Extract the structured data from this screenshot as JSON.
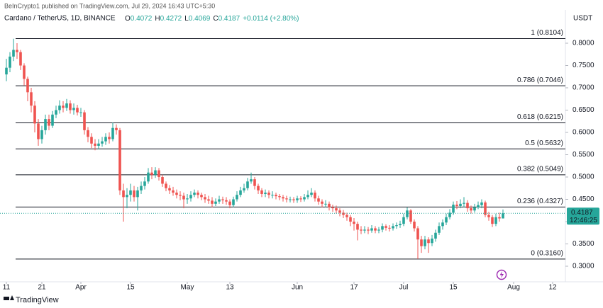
{
  "chart_data": {
    "type": "candlestick",
    "published": "BeInCrypto1 published on TradingView.com, Jul 29, 2024 16:43 UTC+5:30",
    "symbol": "Cardano / TetherUS, 1D, BINANCE",
    "ohlc": [
      {
        "key": "O",
        "value": "0.4072"
      },
      {
        "key": "H",
        "value": "0.4272"
      },
      {
        "key": "L",
        "value": "0.4069"
      },
      {
        "key": "C",
        "value": "0.4187"
      }
    ],
    "change": "+0.0114 (+2.80%)",
    "currency": "USDT",
    "brand": "TradingView",
    "up_color": "#26a69a",
    "down_color": "#ef5350",
    "xlim": [
      -1.8,
      157.6
    ],
    "ylim": [
      0.2651,
      0.8778
    ],
    "xticks": [
      {
        "value": 0,
        "label": "11"
      },
      {
        "value": 10,
        "label": "21"
      },
      {
        "value": 21,
        "label": "Apr"
      },
      {
        "value": 35,
        "label": "15"
      },
      {
        "value": 51,
        "label": "May"
      },
      {
        "value": 63,
        "label": "13"
      },
      {
        "value": 82,
        "label": "Jun"
      },
      {
        "value": 98,
        "label": "17"
      },
      {
        "value": 112,
        "label": "Jul"
      },
      {
        "value": 126,
        "label": "15"
      },
      {
        "value": 143,
        "label": "Aug"
      },
      {
        "value": 154,
        "label": "12"
      }
    ],
    "yticks": [
      {
        "value": 0.8,
        "label": "0.8000"
      },
      {
        "value": 0.75,
        "label": "0.7500"
      },
      {
        "value": 0.7,
        "label": "0.7000"
      },
      {
        "value": 0.65,
        "label": "0.6500"
      },
      {
        "value": 0.6,
        "label": "0.6000"
      },
      {
        "value": 0.55,
        "label": "0.5500"
      },
      {
        "value": 0.5,
        "label": "0.5000"
      },
      {
        "value": 0.45,
        "label": "0.4500"
      },
      {
        "value": 0.4,
        "label": "0.4000"
      },
      {
        "value": 0.35,
        "label": "0.3500"
      },
      {
        "value": 0.3,
        "label": "0.3000"
      }
    ],
    "fib_levels": [
      {
        "value": 0.8104,
        "label": "1 (0.8104)"
      },
      {
        "value": 0.7046,
        "label": "0.786 (0.7046)"
      },
      {
        "value": 0.6215,
        "label": "0.618 (0.6215)"
      },
      {
        "value": 0.5632,
        "label": "0.5 (0.5632)"
      },
      {
        "value": 0.5049,
        "label": "0.382 (0.5049)"
      },
      {
        "value": 0.4327,
        "label": "0.236 (0.4327)"
      },
      {
        "value": 0.316,
        "label": "0 (0.3160)"
      }
    ],
    "last_price": 0.4187,
    "countdown": "12:46:25",
    "open": [
      0.73,
      0.745,
      0.77,
      0.785,
      0.78,
      0.75,
      0.72,
      0.69,
      0.66,
      0.62,
      0.585,
      0.605,
      0.63,
      0.615,
      0.64,
      0.65,
      0.66,
      0.655,
      0.665,
      0.65,
      0.655,
      0.645,
      0.645,
      0.605,
      0.59,
      0.575,
      0.57,
      0.575,
      0.58,
      0.59,
      0.585,
      0.61,
      0.605,
      0.47,
      0.455,
      0.46,
      0.47,
      0.455,
      0.47,
      0.48,
      0.49,
      0.51,
      0.505,
      0.515,
      0.5,
      0.485,
      0.475,
      0.47,
      0.465,
      0.46,
      0.458,
      0.45,
      0.452,
      0.46,
      0.465,
      0.46,
      0.455,
      0.45,
      0.447,
      0.44,
      0.445,
      0.45,
      0.448,
      0.445,
      0.437,
      0.45,
      0.46,
      0.47,
      0.475,
      0.49,
      0.495,
      0.48,
      0.47,
      0.462,
      0.465,
      0.46,
      0.46,
      0.457,
      0.455,
      0.452,
      0.45,
      0.45,
      0.448,
      0.452,
      0.45,
      0.455,
      0.46,
      0.465,
      0.452,
      0.445,
      0.44,
      0.44,
      0.432,
      0.43,
      0.425,
      0.42,
      0.415,
      0.41,
      0.4,
      0.395,
      0.382,
      0.38,
      0.382,
      0.38,
      0.385,
      0.38,
      0.382,
      0.39,
      0.386,
      0.385,
      0.39,
      0.392,
      0.395,
      0.41,
      0.425,
      0.4,
      0.385,
      0.36,
      0.345,
      0.36,
      0.352,
      0.362,
      0.375,
      0.39,
      0.398,
      0.41,
      0.42,
      0.438,
      0.435,
      0.44,
      0.442,
      0.43,
      0.425,
      0.432,
      0.437,
      0.443,
      0.415,
      0.41,
      0.395,
      0.41,
      0.4072
    ],
    "close": [
      0.745,
      0.77,
      0.785,
      0.78,
      0.75,
      0.72,
      0.69,
      0.66,
      0.62,
      0.585,
      0.605,
      0.63,
      0.615,
      0.64,
      0.65,
      0.66,
      0.655,
      0.665,
      0.65,
      0.655,
      0.645,
      0.645,
      0.605,
      0.59,
      0.575,
      0.57,
      0.575,
      0.58,
      0.59,
      0.585,
      0.61,
      0.605,
      0.47,
      0.455,
      0.46,
      0.47,
      0.455,
      0.47,
      0.48,
      0.49,
      0.51,
      0.505,
      0.515,
      0.5,
      0.485,
      0.475,
      0.47,
      0.465,
      0.46,
      0.458,
      0.45,
      0.452,
      0.46,
      0.465,
      0.46,
      0.455,
      0.45,
      0.447,
      0.44,
      0.445,
      0.45,
      0.448,
      0.445,
      0.437,
      0.45,
      0.46,
      0.47,
      0.475,
      0.49,
      0.495,
      0.48,
      0.47,
      0.462,
      0.465,
      0.46,
      0.46,
      0.457,
      0.455,
      0.452,
      0.45,
      0.45,
      0.448,
      0.452,
      0.45,
      0.455,
      0.46,
      0.465,
      0.452,
      0.445,
      0.44,
      0.44,
      0.432,
      0.43,
      0.425,
      0.42,
      0.415,
      0.41,
      0.4,
      0.395,
      0.382,
      0.38,
      0.382,
      0.38,
      0.385,
      0.38,
      0.382,
      0.39,
      0.386,
      0.385,
      0.39,
      0.392,
      0.395,
      0.41,
      0.425,
      0.4,
      0.385,
      0.36,
      0.345,
      0.36,
      0.352,
      0.362,
      0.375,
      0.39,
      0.398,
      0.41,
      0.42,
      0.438,
      0.435,
      0.44,
      0.442,
      0.43,
      0.425,
      0.432,
      0.437,
      0.443,
      0.415,
      0.41,
      0.395,
      0.41,
      0.4072,
      0.4187
    ],
    "high": [
      0.765,
      0.78,
      0.81,
      0.8,
      0.785,
      0.755,
      0.725,
      0.7,
      0.67,
      0.63,
      0.615,
      0.64,
      0.64,
      0.648,
      0.66,
      0.672,
      0.67,
      0.675,
      0.672,
      0.665,
      0.662,
      0.655,
      0.65,
      0.612,
      0.598,
      0.585,
      0.585,
      0.59,
      0.598,
      0.6,
      0.622,
      0.618,
      0.61,
      0.485,
      0.475,
      0.485,
      0.48,
      0.478,
      0.49,
      0.5,
      0.52,
      0.522,
      0.522,
      0.52,
      0.505,
      0.49,
      0.482,
      0.478,
      0.472,
      0.468,
      0.465,
      0.462,
      0.468,
      0.472,
      0.47,
      0.465,
      0.462,
      0.458,
      0.455,
      0.452,
      0.458,
      0.456,
      0.455,
      0.45,
      0.456,
      0.468,
      0.478,
      0.485,
      0.498,
      0.51,
      0.5,
      0.485,
      0.475,
      0.472,
      0.47,
      0.468,
      0.465,
      0.462,
      0.46,
      0.458,
      0.456,
      0.455,
      0.458,
      0.457,
      0.462,
      0.47,
      0.475,
      0.47,
      0.458,
      0.45,
      0.448,
      0.445,
      0.438,
      0.436,
      0.43,
      0.426,
      0.42,
      0.415,
      0.408,
      0.4,
      0.39,
      0.39,
      0.388,
      0.392,
      0.39,
      0.388,
      0.396,
      0.394,
      0.392,
      0.396,
      0.398,
      0.402,
      0.418,
      0.432,
      0.428,
      0.405,
      0.39,
      0.368,
      0.368,
      0.365,
      0.37,
      0.382,
      0.398,
      0.405,
      0.418,
      0.428,
      0.445,
      0.446,
      0.45,
      0.455,
      0.448,
      0.436,
      0.44,
      0.445,
      0.45,
      0.447,
      0.422,
      0.415,
      0.418,
      0.42,
      0.4272
    ],
    "low": [
      0.715,
      0.735,
      0.76,
      0.765,
      0.74,
      0.705,
      0.67,
      0.645,
      0.6,
      0.57,
      0.575,
      0.595,
      0.605,
      0.61,
      0.632,
      0.642,
      0.645,
      0.648,
      0.642,
      0.64,
      0.638,
      0.635,
      0.595,
      0.578,
      0.565,
      0.56,
      0.562,
      0.568,
      0.572,
      0.575,
      0.58,
      0.595,
      0.46,
      0.4,
      0.43,
      0.445,
      0.445,
      0.425,
      0.462,
      0.472,
      0.485,
      0.495,
      0.498,
      0.492,
      0.478,
      0.468,
      0.462,
      0.458,
      0.452,
      0.448,
      0.43,
      0.44,
      0.445,
      0.455,
      0.452,
      0.448,
      0.442,
      0.44,
      0.432,
      0.435,
      0.44,
      0.44,
      0.438,
      0.43,
      0.432,
      0.445,
      0.455,
      0.465,
      0.47,
      0.485,
      0.472,
      0.462,
      0.455,
      0.455,
      0.452,
      0.452,
      0.45,
      0.448,
      0.445,
      0.443,
      0.443,
      0.442,
      0.442,
      0.444,
      0.445,
      0.45,
      0.455,
      0.445,
      0.438,
      0.432,
      0.432,
      0.425,
      0.422,
      0.418,
      0.412,
      0.408,
      0.402,
      0.39,
      0.38,
      0.358,
      0.372,
      0.374,
      0.372,
      0.375,
      0.374,
      0.374,
      0.376,
      0.38,
      0.378,
      0.38,
      0.384,
      0.386,
      0.39,
      0.405,
      0.395,
      0.378,
      0.316,
      0.33,
      0.338,
      0.33,
      0.345,
      0.355,
      0.37,
      0.382,
      0.392,
      0.405,
      0.415,
      0.428,
      0.43,
      0.432,
      0.422,
      0.418,
      0.42,
      0.428,
      0.43,
      0.41,
      0.402,
      0.388,
      0.39,
      0.4,
      0.4069
    ]
  }
}
